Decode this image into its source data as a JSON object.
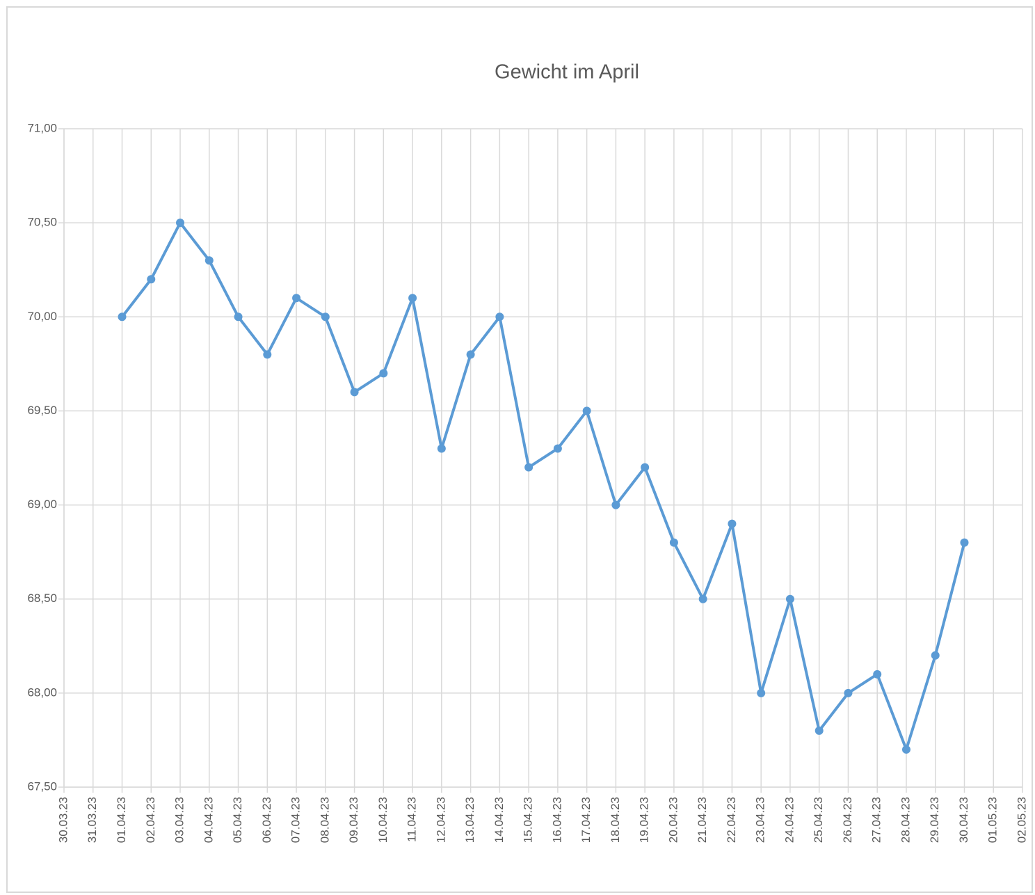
{
  "chart_data": {
    "type": "line",
    "title": "Gewicht im April",
    "categories": [
      "30.03.23",
      "31.03.23",
      "01.04.23",
      "02.04.23",
      "03.04.23",
      "04.04.23",
      "05.04.23",
      "06.04.23",
      "07.04.23",
      "08.04.23",
      "09.04.23",
      "10.04.23",
      "11.04.23",
      "12.04.23",
      "13.04.23",
      "14.04.23",
      "15.04.23",
      "16.04.23",
      "17.04.23",
      "18.04.23",
      "19.04.23",
      "20.04.23",
      "21.04.23",
      "22.04.23",
      "23.04.23",
      "24.04.23",
      "25.04.23",
      "26.04.23",
      "27.04.23",
      "28.04.23",
      "29.04.23",
      "30.04.23",
      "01.05.23",
      "02.05.23"
    ],
    "series": [
      {
        "color": "#5b9bd5",
        "values": [
          null,
          null,
          70.0,
          70.2,
          70.5,
          70.3,
          70.0,
          69.8,
          70.1,
          70.0,
          69.6,
          69.7,
          70.1,
          69.3,
          69.8,
          70.0,
          69.2,
          69.3,
          69.5,
          69.0,
          69.2,
          68.8,
          68.5,
          68.9,
          68.0,
          68.5,
          67.8,
          68.0,
          68.1,
          67.7,
          68.2,
          68.8,
          null,
          null
        ]
      }
    ],
    "ylim": [
      67.5,
      71.0
    ],
    "yticks": [
      {
        "value": 67.5,
        "label": "67,50"
      },
      {
        "value": 68.0,
        "label": "68,00"
      },
      {
        "value": 68.5,
        "label": "68,50"
      },
      {
        "value": 69.0,
        "label": "69,00"
      },
      {
        "value": 69.5,
        "label": "69,50"
      },
      {
        "value": 70.0,
        "label": "70,00"
      },
      {
        "value": 70.5,
        "label": "70,50"
      },
      {
        "value": 71.0,
        "label": "71,00"
      }
    ],
    "grid": true
  }
}
